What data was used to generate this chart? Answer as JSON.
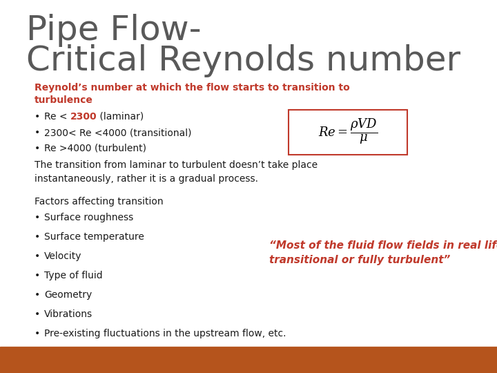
{
  "title_line1": "Pipe Flow-",
  "title_line2": "Critical Reynolds number",
  "subtitle": "Reynold’s number at which the flow starts to transition to\nturbulence",
  "subtitle_color": "#c0392b",
  "title_color": "#595959",
  "bg_color": "#ffffff",
  "bar_color": "#b5541c",
  "bullet_items_plain": [
    [
      "Re < ",
      "2300",
      " (laminar)"
    ],
    [
      "2300< Re <4000 (transitional)",
      null,
      null
    ],
    [
      "Re >4000 (turbulent)",
      null,
      null
    ]
  ],
  "transition_text": "The transition from laminar to turbulent doesn’t take place\ninstantaneously, rather it is a gradual process.",
  "factors_title": "Factors affecting transition",
  "factors_list": [
    "Surface roughness",
    "Surface temperature",
    "Velocity",
    "Type of fluid",
    "Geometry",
    "Vibrations",
    "Pre-existing fluctuations in the upstream flow, etc."
  ],
  "quote_text": "“Most of the fluid flow fields in real life are\ntransitional or fully turbulent”",
  "quote_color": "#c0392b",
  "body_color": "#1a1a1a",
  "formula_box_color": "#c0392b",
  "highlight_color": "#c0392b"
}
